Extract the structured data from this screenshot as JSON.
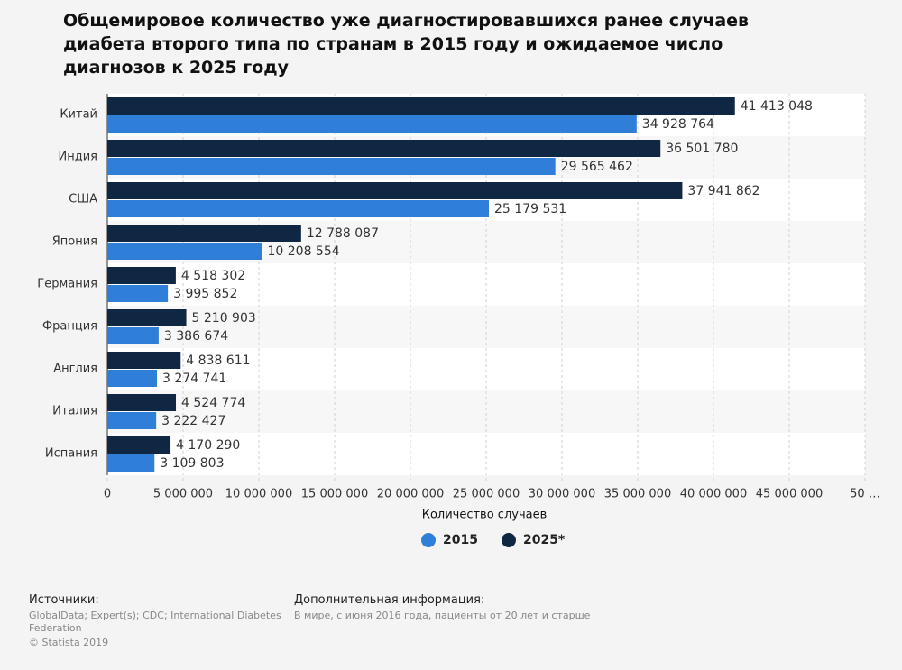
{
  "chart_data": {
    "type": "grouped-hbar",
    "title": "Общемировое количество уже диагностировавшихся ранее случаев диабета второго типа по странам в 2015 году и ожидаемое число диагнозов к 2025 году",
    "categories": [
      "Китай",
      "Индия",
      "США",
      "Япония",
      "Германия",
      "Франция",
      "Англия",
      "Италия",
      "Испания"
    ],
    "series": [
      {
        "name": "2015",
        "color": "#2f7ed8",
        "values": [
          34928764,
          29565462,
          25179531,
          10208554,
          3995852,
          3386674,
          3274741,
          3222427,
          3109803
        ],
        "value_labels": [
          "34 928 764",
          "29 565 462",
          "25 179 531",
          "10 208 554",
          "3 995 852",
          "3 386 674",
          "3 274 741",
          "3 222 427",
          "3 109 803"
        ]
      },
      {
        "name": "2025*",
        "color": "#0f2742",
        "values": [
          41413048,
          36501780,
          37941862,
          12788087,
          4518302,
          5210903,
          4838611,
          4524774,
          4170290
        ],
        "value_labels": [
          "41 413 048",
          "36 501 780",
          "37 941 862",
          "12 788 087",
          "4 518 302",
          "5 210 903",
          "4 838 611",
          "4 524 774",
          "4 170 290"
        ]
      }
    ],
    "xlabel": "Количество случаев",
    "xlim": [
      0,
      50000000
    ],
    "xticks": [
      0,
      {
        "value": 5000000,
        "label": "5 000 000"
      },
      {
        "value": 10000000,
        "label": "10 000 000"
      },
      {
        "value": 15000000,
        "label": "15 000 000"
      },
      {
        "value": 20000000,
        "label": "20 000 000"
      },
      {
        "value": 25000000,
        "label": "25 000 000"
      },
      {
        "value": 30000000,
        "label": "30 000 000"
      },
      {
        "value": 35000000,
        "label": "35 000 000"
      },
      {
        "value": 40000000,
        "label": "40 000 000"
      },
      {
        "value": 45000000,
        "label": "45 000 000"
      },
      {
        "value": 50000000,
        "label": "50 …"
      }
    ],
    "grid": true,
    "legend": "bottom"
  },
  "footer": {
    "sources_title": "Источники:",
    "sources": "GlobalData; Expert(s); CDC; International Diabetes Federation",
    "copyright": "© Statista 2019",
    "info_title": "Дополнительная информация:",
    "info": "В мире, с июня 2016 года, пациенты от 20 лет и старше"
  }
}
